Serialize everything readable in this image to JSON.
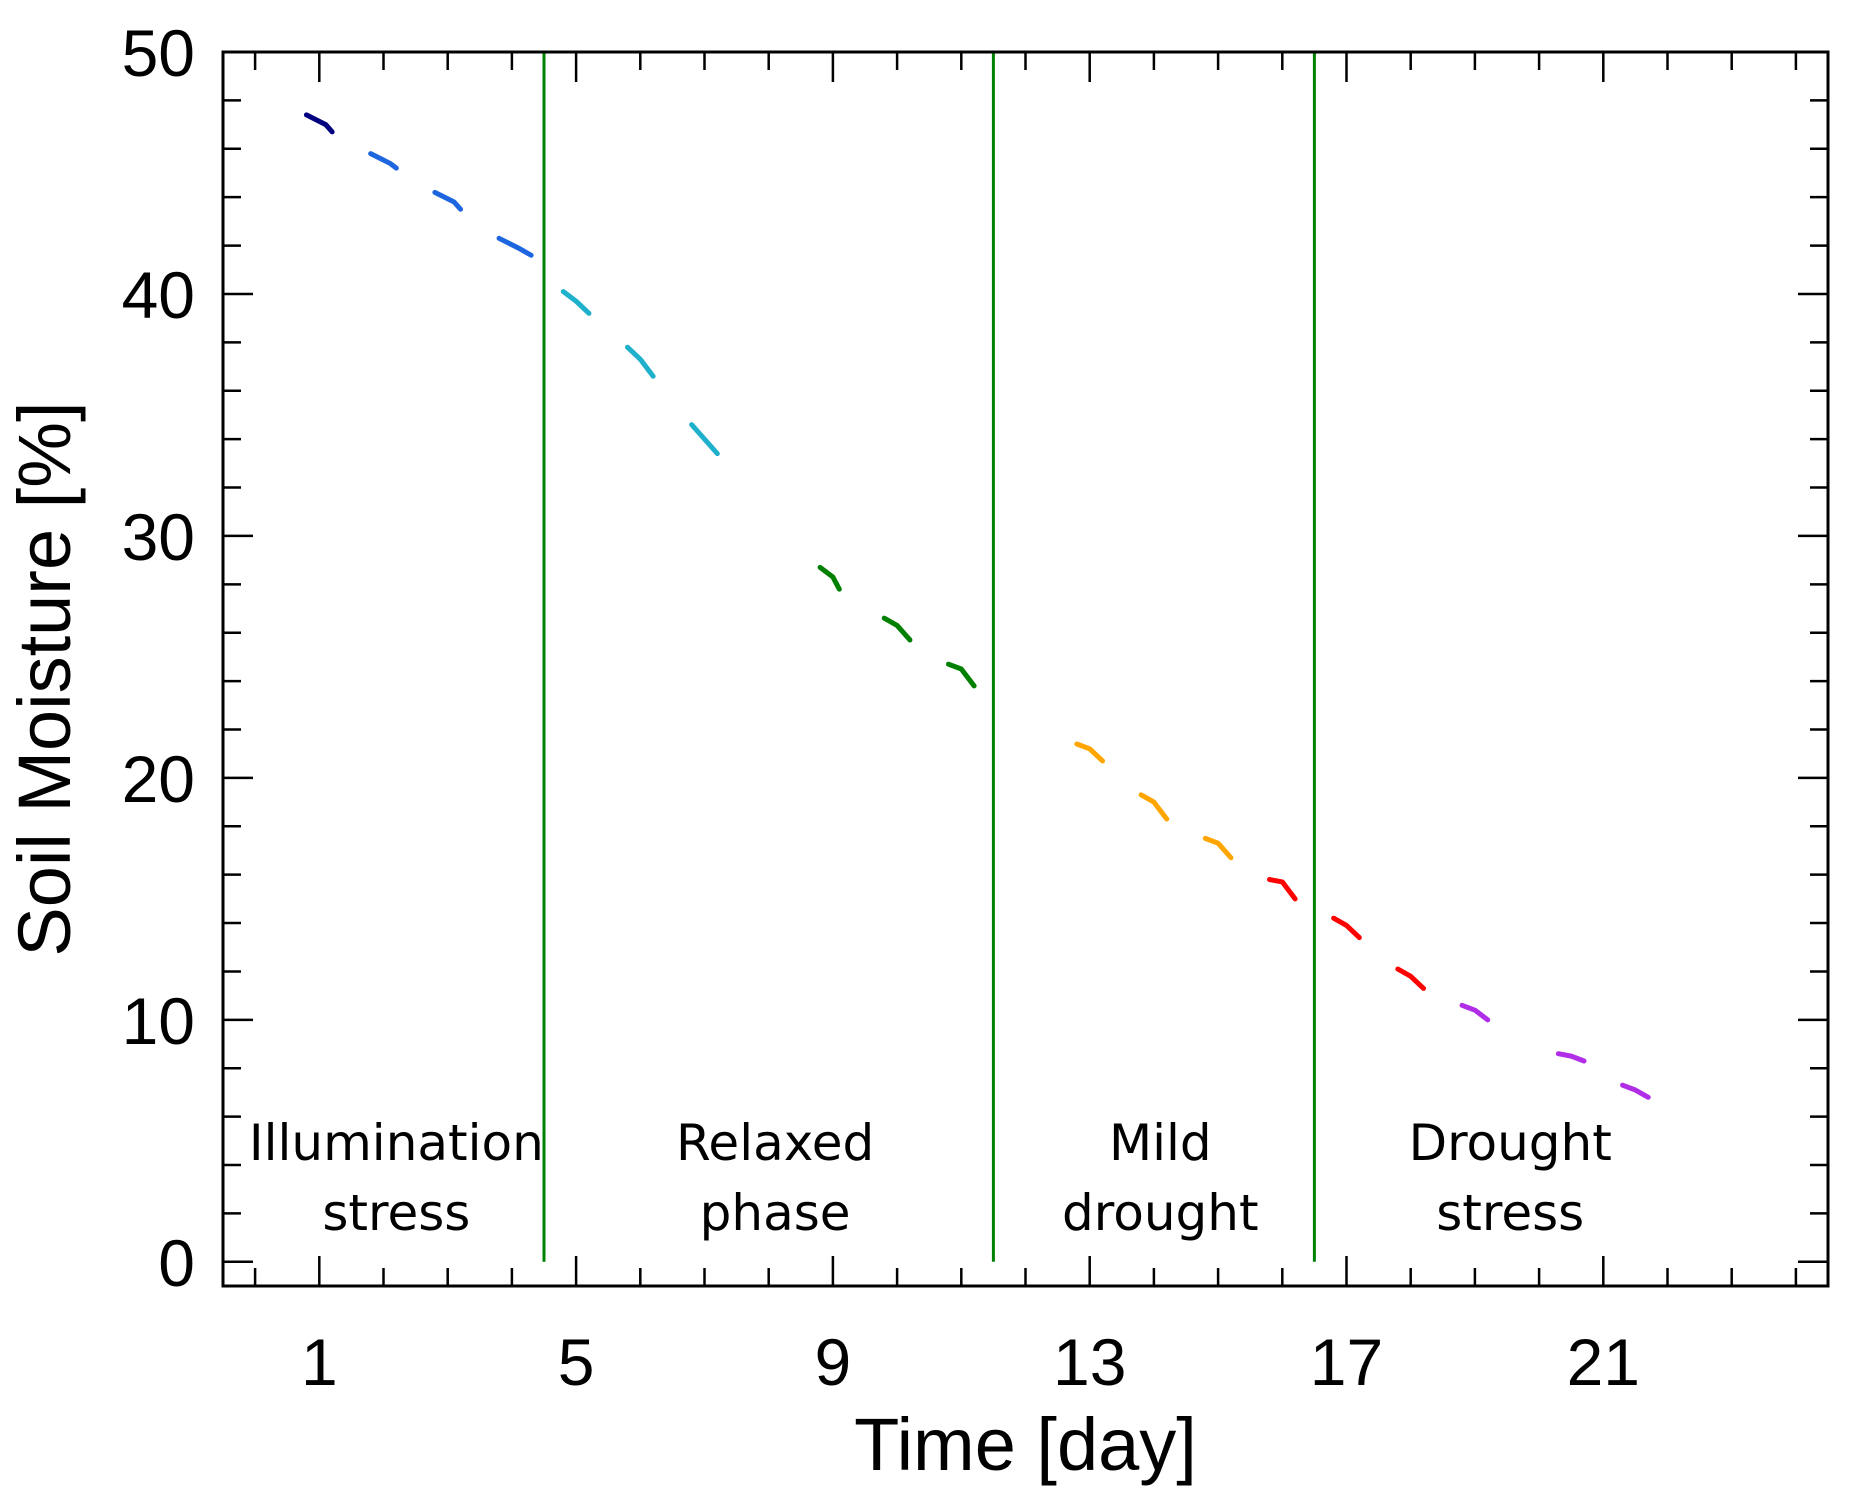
{
  "chart_data": {
    "type": "line",
    "title": "",
    "xlabel": "Time [day]",
    "ylabel": "Soil Moisture [%]",
    "xlim": [
      -0.5,
      24.5
    ],
    "ylim": [
      -1,
      50
    ],
    "xticks": [
      1,
      5,
      9,
      13,
      17,
      21
    ],
    "yticks": [
      0,
      10,
      20,
      30,
      40,
      50
    ],
    "phase_boundaries": [
      4.5,
      11.5,
      16.5
    ],
    "phase_line_color": "#008000",
    "phases": [
      {
        "lines": [
          "Illumination",
          "stress"
        ],
        "x": 2.2
      },
      {
        "lines": [
          "Relaxed",
          "phase"
        ],
        "x": 8.1
      },
      {
        "lines": [
          "Mild",
          "drought"
        ],
        "x": 14.1
      },
      {
        "lines": [
          "Drought",
          "stress"
        ],
        "x": 19.55
      }
    ],
    "series": [
      {
        "name": "day 1",
        "color": "#000080",
        "x": [
          0.8,
          1.1,
          1.2
        ],
        "y": [
          47.4,
          47.0,
          46.7
        ]
      },
      {
        "name": "day 2",
        "color": "#1e66e0",
        "x": [
          1.8,
          2.1,
          2.2
        ],
        "y": [
          45.8,
          45.4,
          45.2
        ]
      },
      {
        "name": "day 3",
        "color": "#1e66e0",
        "x": [
          2.8,
          3.1,
          3.2
        ],
        "y": [
          44.2,
          43.8,
          43.5
        ]
      },
      {
        "name": "day 4",
        "color": "#1e66e0",
        "x": [
          3.8,
          4.1,
          4.3
        ],
        "y": [
          42.3,
          41.9,
          41.6
        ]
      },
      {
        "name": "day 5",
        "color": "#1fb0cc",
        "x": [
          4.8,
          5.0,
          5.2
        ],
        "y": [
          40.1,
          39.7,
          39.2
        ]
      },
      {
        "name": "day 6",
        "color": "#1fb0cc",
        "x": [
          5.8,
          6.0,
          6.2
        ],
        "y": [
          37.8,
          37.3,
          36.6
        ]
      },
      {
        "name": "day 7",
        "color": "#1fb0cc",
        "x": [
          6.8,
          7.0,
          7.2
        ],
        "y": [
          34.6,
          34.0,
          33.4
        ]
      },
      {
        "name": "day 9",
        "color": "#008000",
        "x": [
          8.8,
          9.0,
          9.1
        ],
        "y": [
          28.7,
          28.3,
          27.8
        ]
      },
      {
        "name": "day 10",
        "color": "#008000",
        "x": [
          9.8,
          10.0,
          10.2
        ],
        "y": [
          26.6,
          26.3,
          25.7
        ]
      },
      {
        "name": "day 11",
        "color": "#008000",
        "x": [
          10.8,
          11.0,
          11.2
        ],
        "y": [
          24.7,
          24.5,
          23.8
        ]
      },
      {
        "name": "day 13",
        "color": "#ffa500",
        "x": [
          12.8,
          13.0,
          13.2
        ],
        "y": [
          21.4,
          21.2,
          20.7
        ]
      },
      {
        "name": "day 14",
        "color": "#ffa500",
        "x": [
          13.8,
          14.0,
          14.2
        ],
        "y": [
          19.3,
          19.0,
          18.3
        ]
      },
      {
        "name": "day 15",
        "color": "#ffa500",
        "x": [
          14.8,
          15.0,
          15.2
        ],
        "y": [
          17.5,
          17.3,
          16.7
        ]
      },
      {
        "name": "day 16",
        "color": "#ff0000",
        "x": [
          15.8,
          16.0,
          16.2
        ],
        "y": [
          15.8,
          15.7,
          15.0
        ]
      },
      {
        "name": "day 17",
        "color": "#ff0000",
        "x": [
          16.8,
          17.0,
          17.2
        ],
        "y": [
          14.2,
          13.9,
          13.4
        ]
      },
      {
        "name": "day 18",
        "color": "#ff0000",
        "x": [
          17.8,
          18.0,
          18.2
        ],
        "y": [
          12.1,
          11.8,
          11.3
        ]
      },
      {
        "name": "day 19",
        "color": "#b02ee8",
        "x": [
          18.8,
          19.0,
          19.2
        ],
        "y": [
          10.6,
          10.4,
          10.0
        ]
      },
      {
        "name": "day 20",
        "color": "#b02ee8",
        "x": [
          20.3,
          20.5,
          20.7
        ],
        "y": [
          8.6,
          8.5,
          8.3
        ]
      },
      {
        "name": "day 21",
        "color": "#b02ee8",
        "x": [
          21.3,
          21.5,
          21.7
        ],
        "y": [
          7.3,
          7.1,
          6.8
        ]
      }
    ]
  }
}
